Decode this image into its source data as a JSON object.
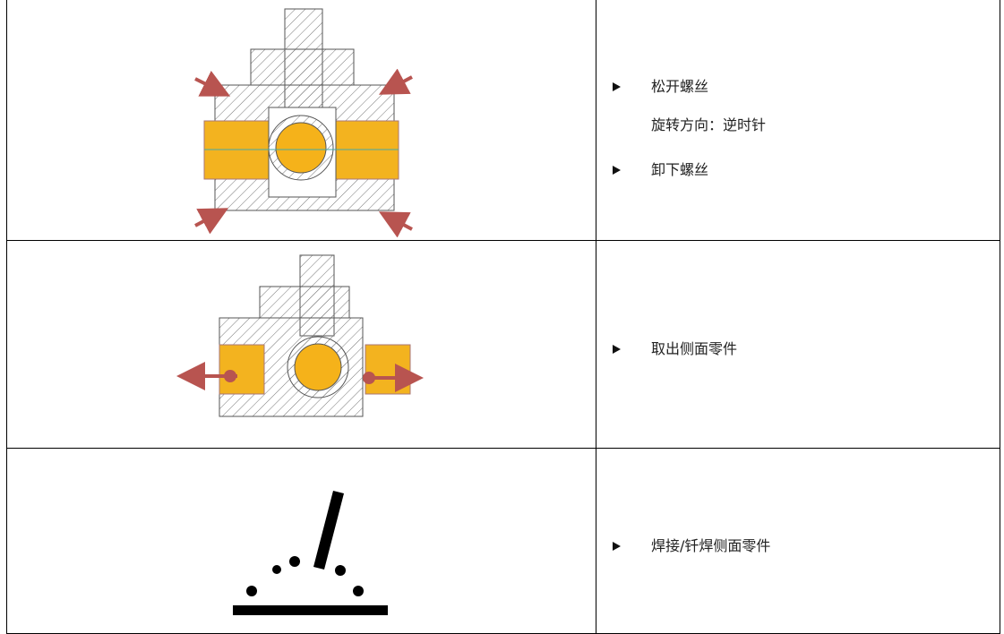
{
  "table": {
    "rows": [
      {
        "items": [
          "松开螺丝",
          "卸下螺丝"
        ],
        "note": "旋转方向：逆时针"
      },
      {
        "items": [
          "取出侧面零件"
        ]
      },
      {
        "items": [
          "焊接/钎焊侧面零件"
        ]
      }
    ]
  }
}
